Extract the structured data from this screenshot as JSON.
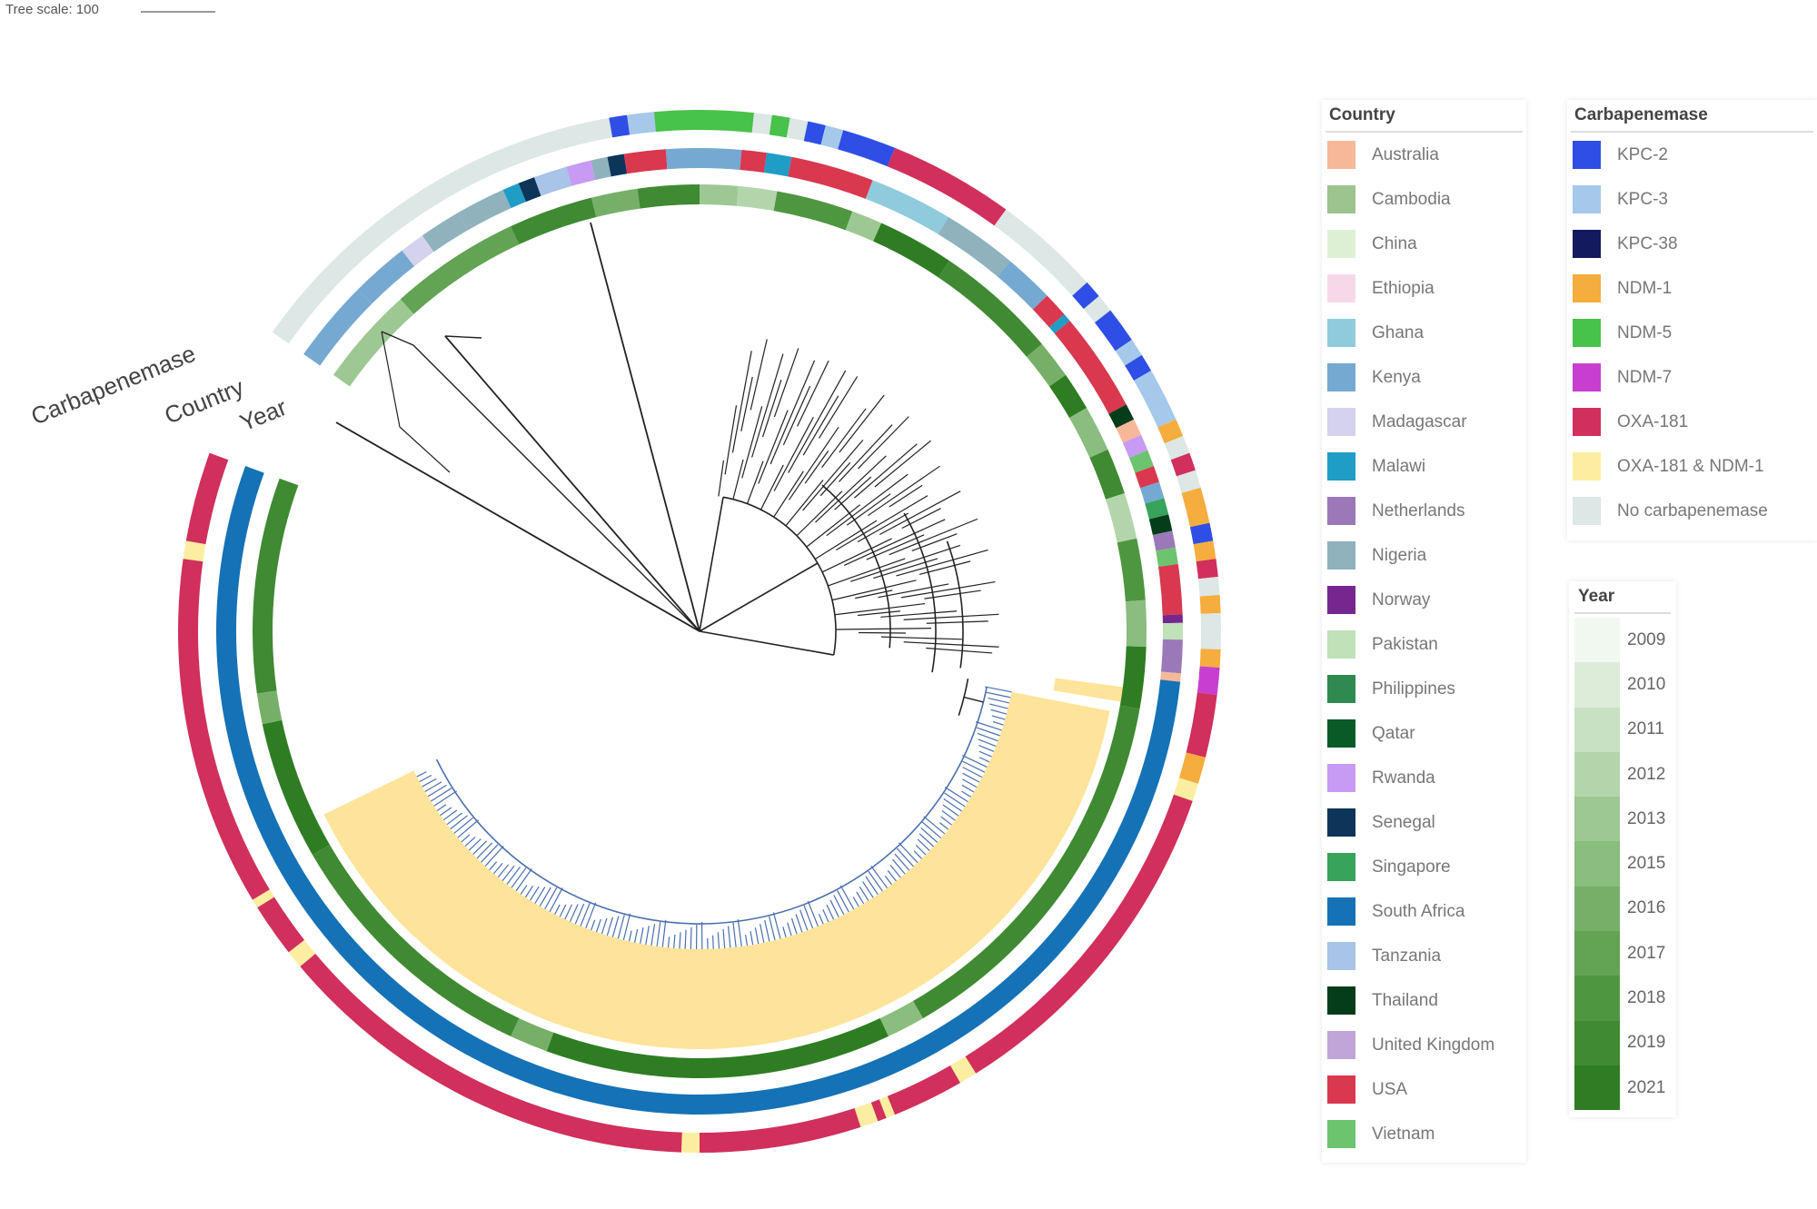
{
  "tree_scale": {
    "label": "Tree scale: 100"
  },
  "ring_labels": {
    "carbapenemase": "Carbapenemase",
    "country": "Country",
    "year": "Year"
  },
  "legends": {
    "country": {
      "title": "Country",
      "items": [
        {
          "label": "Australia",
          "color": "#f7b89a"
        },
        {
          "label": "Cambodia",
          "color": "#9dc48f"
        },
        {
          "label": "China",
          "color": "#def0d4"
        },
        {
          "label": "Ethiopia",
          "color": "#f6d9e8"
        },
        {
          "label": "Ghana",
          "color": "#8fcbdd"
        },
        {
          "label": "Kenya",
          "color": "#75a9d2"
        },
        {
          "label": "Madagascar",
          "color": "#d4d2ec"
        },
        {
          "label": "Malawi",
          "color": "#1f9dc6"
        },
        {
          "label": "Netherlands",
          "color": "#9b79b8"
        },
        {
          "label": "Nigeria",
          "color": "#8fb2bd"
        },
        {
          "label": "Norway",
          "color": "#75278f"
        },
        {
          "label": "Pakistan",
          "color": "#bfe2b8"
        },
        {
          "label": "Philippines",
          "color": "#2e8a4e"
        },
        {
          "label": "Qatar",
          "color": "#0a5a28"
        },
        {
          "label": "Rwanda",
          "color": "#c79af4"
        },
        {
          "label": "Senegal",
          "color": "#0c3559"
        },
        {
          "label": "Singapore",
          "color": "#38a35a"
        },
        {
          "label": "South Africa",
          "color": "#1572b6"
        },
        {
          "label": "Tanzania",
          "color": "#a8c4e6"
        },
        {
          "label": "Thailand",
          "color": "#053d1a"
        },
        {
          "label": "United Kingdom",
          "color": "#c1a5d8"
        },
        {
          "label": "USA",
          "color": "#d9384e"
        },
        {
          "label": "Vietnam",
          "color": "#6cc46e"
        }
      ]
    },
    "carbapenemase": {
      "title": "Carbapenemase",
      "items": [
        {
          "label": "KPC-2",
          "color": "#2f4ee6"
        },
        {
          "label": "KPC-3",
          "color": "#a6c8ea"
        },
        {
          "label": "KPC-38",
          "color": "#131a5e"
        },
        {
          "label": "NDM-1",
          "color": "#f5ad3d"
        },
        {
          "label": "NDM-5",
          "color": "#47c24a"
        },
        {
          "label": "NDM-7",
          "color": "#c83fd0"
        },
        {
          "label": "OXA-181",
          "color": "#d12f5c"
        },
        {
          "label": "OXA-181 & NDM-1",
          "color": "#fbeea0"
        },
        {
          "label": "No carbapenemase",
          "color": "#dde7e5"
        }
      ]
    },
    "year": {
      "title": "Year",
      "items": [
        {
          "label": "2009",
          "color": "#f1f8f0"
        },
        {
          "label": "2010",
          "color": "#dcecd8"
        },
        {
          "label": "2011",
          "color": "#c8e1c2"
        },
        {
          "label": "2012",
          "color": "#b3d5ab"
        },
        {
          "label": "2013",
          "color": "#9ec893"
        },
        {
          "label": "2015",
          "color": "#8abd7e"
        },
        {
          "label": "2016",
          "color": "#76b068"
        },
        {
          "label": "2017",
          "color": "#62a354"
        },
        {
          "label": "2018",
          "color": "#4f9641"
        },
        {
          "label": "2019",
          "color": "#3f8a32"
        },
        {
          "label": "2021",
          "color": "#2f7d23"
        }
      ]
    }
  },
  "colors": {
    "highlight_clade": "#fde49a",
    "branch": "#222222",
    "clade_branch": "#4a6fb0"
  }
}
